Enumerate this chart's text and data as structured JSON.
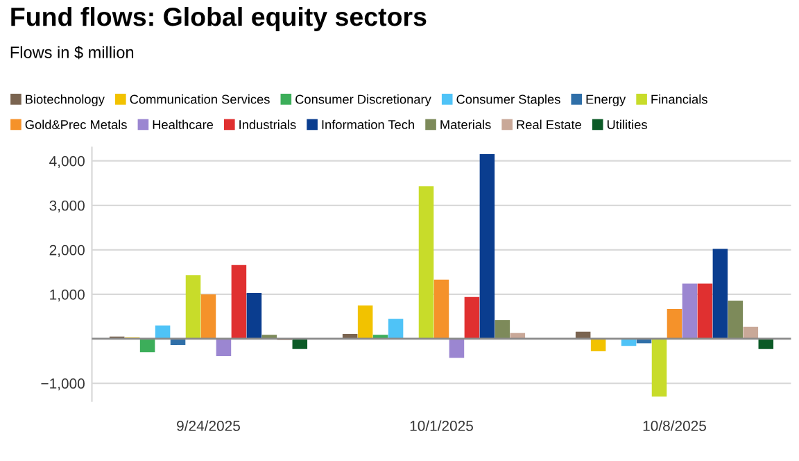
{
  "chart_data": {
    "type": "bar",
    "title": "Fund flows: Global equity sectors",
    "subtitle": "Flows in $ million",
    "categories": [
      "9/24/2025",
      "10/1/2025",
      "10/8/2025"
    ],
    "series": [
      {
        "name": "Biotechnology",
        "color": "#7a6450",
        "values": [
          50,
          110,
          160
        ]
      },
      {
        "name": "Communication Services",
        "color": "#f2c200",
        "values": [
          30,
          750,
          -280
        ]
      },
      {
        "name": "Consumer Discretionary",
        "color": "#3cae5a",
        "values": [
          -300,
          90,
          null
        ]
      },
      {
        "name": "Consumer Staples",
        "color": "#4fc3f7",
        "values": [
          300,
          450,
          -160
        ]
      },
      {
        "name": "Energy",
        "color": "#2f6fa8",
        "values": [
          -140,
          10,
          -100
        ]
      },
      {
        "name": "Financials",
        "color": "#c8dc2a",
        "values": [
          1430,
          3430,
          -1300
        ]
      },
      {
        "name": "Gold&Prec Metals",
        "color": "#f5922a",
        "values": [
          1000,
          1330,
          670
        ]
      },
      {
        "name": "Healthcare",
        "color": "#9b86d1",
        "values": [
          -390,
          -430,
          1240
        ]
      },
      {
        "name": "Industrials",
        "color": "#e03030",
        "values": [
          1660,
          940,
          1240
        ]
      },
      {
        "name": "Information Tech",
        "color": "#0a3d8f",
        "values": [
          1030,
          4150,
          2020
        ]
      },
      {
        "name": "Materials",
        "color": "#7d8a5a",
        "values": [
          90,
          420,
          860
        ]
      },
      {
        "name": "Real Estate",
        "color": "#c9a898",
        "values": [
          -30,
          130,
          270
        ]
      },
      {
        "name": "Utilities",
        "color": "#0b5a26",
        "values": [
          -230,
          null,
          -230
        ]
      }
    ],
    "ylim": [
      -1400,
      4300
    ],
    "yticks": [
      {
        "value": -1000,
        "label": "−1,000"
      },
      {
        "value": 1000,
        "label": "1,000"
      },
      {
        "value": 2000,
        "label": "2,000"
      },
      {
        "value": 3000,
        "label": "3,000"
      },
      {
        "value": 4000,
        "label": "4,000"
      }
    ],
    "grid": "y",
    "legend": "top"
  }
}
